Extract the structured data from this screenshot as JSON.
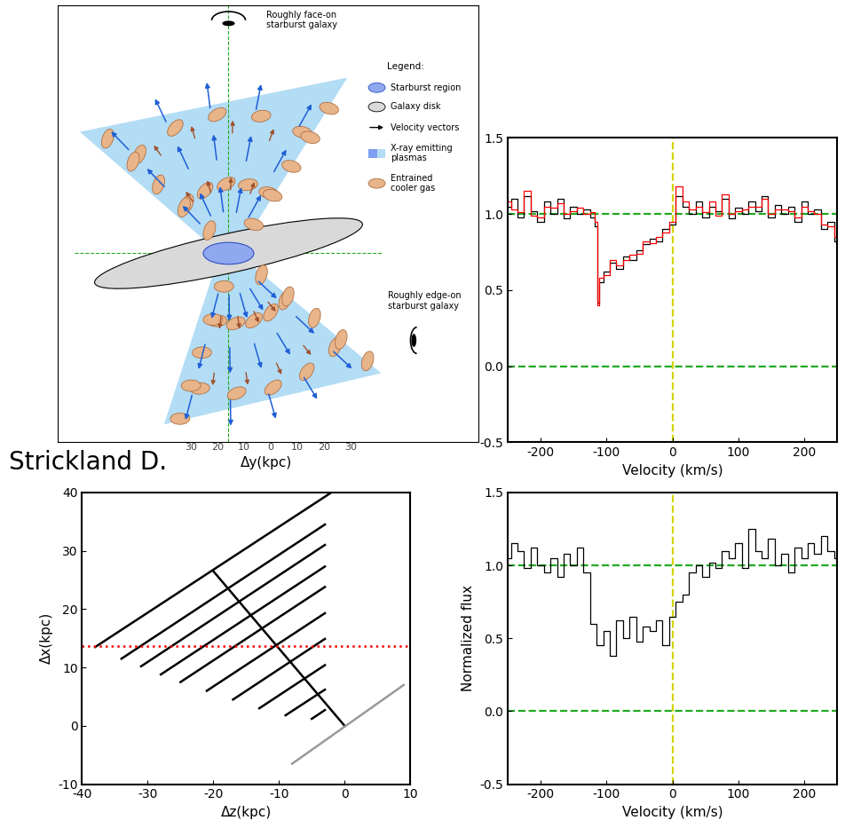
{
  "caption": "Strickland D.",
  "diagram": {
    "face_on_label": "Roughly face-on\nstarburst galaxy",
    "edge_on_label": "Roughly edge-on\nstarburst galaxy",
    "key": {
      "title": "Legend:",
      "entries": [
        "Starburst region",
        "Galaxy disk",
        "Velocity vectors",
        "X-ray emitting\nplasmas",
        "Entrained\ncooler gas"
      ]
    },
    "axis_numbers": [
      "30",
      "20",
      "10",
      "0",
      "10",
      "20",
      "30"
    ],
    "xlabel": "Δy(kpc)"
  },
  "chart_data": [
    {
      "type": "line",
      "xlabel": "Velocity (km/s)",
      "x": [
        -250,
        -240,
        -230,
        -220,
        -210,
        -200,
        -190,
        -180,
        -170,
        -160,
        -150,
        -140,
        -130,
        -120,
        -115,
        -112,
        -110,
        -100,
        -90,
        -80,
        -70,
        -60,
        -50,
        -40,
        -30,
        -20,
        -10,
        0,
        10,
        20,
        30,
        40,
        50,
        60,
        70,
        80,
        90,
        100,
        110,
        120,
        130,
        140,
        150,
        160,
        170,
        180,
        190,
        200,
        210,
        220,
        230,
        240,
        250
      ],
      "series": [
        {
          "color": "#000000",
          "values": [
            1.05,
            1.1,
            0.98,
            1.12,
            1.02,
            0.95,
            1.08,
            1.0,
            1.1,
            0.97,
            1.05,
            1.0,
            1.03,
            0.98,
            0.92,
            0.42,
            0.55,
            0.62,
            0.68,
            0.64,
            0.72,
            0.7,
            0.76,
            0.8,
            0.84,
            0.82,
            0.9,
            0.93,
            1.12,
            1.05,
            1.0,
            1.08,
            0.98,
            1.05,
            1.02,
            1.1,
            0.97,
            1.04,
            1.0,
            1.08,
            1.02,
            1.12,
            0.98,
            1.06,
            1.0,
            1.05,
            0.95,
            1.08,
            1.0,
            1.03,
            0.9,
            0.95,
            0.82
          ]
        },
        {
          "color": "#ff0000",
          "values": [
            1.08,
            1.03,
            1.01,
            1.15,
            0.99,
            0.98,
            1.05,
            1.04,
            1.07,
            1.0,
            1.02,
            1.04,
            1.0,
            1.01,
            0.95,
            0.4,
            0.58,
            0.6,
            0.7,
            0.66,
            0.7,
            0.73,
            0.74,
            0.82,
            0.81,
            0.85,
            0.88,
            0.95,
            1.18,
            1.08,
            1.03,
            1.05,
            1.01,
            1.08,
            0.99,
            1.13,
            1.0,
            1.02,
            1.03,
            1.05,
            1.05,
            1.1,
            1.0,
            1.03,
            1.03,
            1.02,
            0.98,
            1.05,
            1.02,
            1.0,
            0.93,
            0.92,
            0.85
          ]
        }
      ],
      "hlines": [
        {
          "value": 1.0,
          "color": "#22aa22"
        },
        {
          "value": 0.0,
          "color": "#22aa22"
        }
      ],
      "vlines": [
        {
          "value": 0,
          "color": "#d4d400"
        }
      ],
      "xlim": [
        -250,
        250
      ],
      "xticks": [
        -200,
        -100,
        0,
        100,
        200
      ],
      "ylim": [
        -0.5,
        1.5
      ],
      "yticks": [
        -0.5,
        0.0,
        0.5,
        1.0,
        1.5
      ]
    },
    {
      "type": "line",
      "xlabel": "Δz(kpc)",
      "ylabel": "Δx(kpc)",
      "series": [
        {
          "color": "#000000",
          "x": [
            -38,
            -2
          ],
          "values": [
            13.5,
            40.0
          ]
        },
        {
          "color": "#000000",
          "x": [
            -34,
            -3
          ],
          "values": [
            11.5,
            34.5
          ]
        },
        {
          "color": "#000000",
          "x": [
            -31,
            -3
          ],
          "values": [
            10.2,
            31.0
          ]
        },
        {
          "color": "#000000",
          "x": [
            -28,
            -3
          ],
          "values": [
            8.8,
            27.3
          ]
        },
        {
          "color": "#000000",
          "x": [
            -25,
            -3
          ],
          "values": [
            7.5,
            23.8
          ]
        },
        {
          "color": "#000000",
          "x": [
            -21,
            -3
          ],
          "values": [
            6.0,
            19.3
          ]
        },
        {
          "color": "#000000",
          "x": [
            -17,
            -3
          ],
          "values": [
            4.5,
            14.9
          ]
        },
        {
          "color": "#000000",
          "x": [
            -13,
            -3
          ],
          "values": [
            3.0,
            10.4
          ]
        },
        {
          "color": "#000000",
          "x": [
            -9,
            -3
          ],
          "values": [
            1.8,
            6.2
          ]
        },
        {
          "color": "#000000",
          "x": [
            -5,
            -3
          ],
          "values": [
            1.2,
            2.7
          ]
        },
        {
          "color": "#000000",
          "x": [
            0,
            -20
          ],
          "values": [
            0,
            26.5
          ]
        },
        {
          "color": "#999999",
          "x": [
            -8,
            9
          ],
          "values": [
            -6.5,
            7
          ]
        },
        {
          "color": "#ff0000",
          "x": [
            -40,
            10
          ],
          "values": [
            13.7,
            13.7
          ],
          "line_style": "dotted"
        }
      ],
      "xlim": [
        -40,
        10
      ],
      "xticks": [
        -40,
        -30,
        -20,
        -10,
        0,
        10
      ],
      "ylim": [
        -10,
        40
      ],
      "yticks": [
        -10,
        0,
        10,
        20,
        30,
        40
      ]
    },
    {
      "type": "line",
      "xlabel": "Velocity (km/s)",
      "ylabel": "Normalized flux",
      "x": [
        -250,
        -240,
        -230,
        -220,
        -210,
        -200,
        -190,
        -180,
        -170,
        -160,
        -150,
        -140,
        -130,
        -120,
        -110,
        -100,
        -90,
        -80,
        -70,
        -60,
        -50,
        -40,
        -30,
        -20,
        -10,
        0,
        10,
        20,
        30,
        40,
        50,
        60,
        70,
        80,
        90,
        100,
        110,
        120,
        130,
        140,
        150,
        160,
        170,
        180,
        190,
        200,
        210,
        220,
        230,
        240,
        250
      ],
      "series": [
        {
          "color": "#000000",
          "values": [
            1.05,
            1.15,
            1.1,
            0.98,
            1.12,
            1.0,
            0.95,
            1.05,
            0.92,
            1.08,
            1.0,
            1.12,
            0.95,
            0.6,
            0.45,
            0.55,
            0.38,
            0.62,
            0.5,
            0.65,
            0.48,
            0.58,
            0.55,
            0.62,
            0.45,
            0.65,
            0.75,
            0.8,
            0.95,
            1.0,
            0.92,
            1.02,
            0.98,
            1.1,
            1.05,
            1.15,
            0.98,
            1.25,
            1.1,
            1.05,
            1.18,
            1.0,
            1.08,
            0.95,
            1.12,
            1.05,
            1.15,
            1.08,
            1.2,
            1.1,
            1.05
          ]
        }
      ],
      "hlines": [
        {
          "value": 1.0,
          "color": "#22aa22"
        },
        {
          "value": 0.0,
          "color": "#22aa22"
        }
      ],
      "vlines": [
        {
          "value": 0,
          "color": "#d4d400"
        }
      ],
      "xlim": [
        -250,
        250
      ],
      "xticks": [
        -200,
        -100,
        0,
        100,
        200
      ],
      "ylim": [
        -0.5,
        1.5
      ],
      "yticks": [
        -0.5,
        0.0,
        0.5,
        1.0,
        1.5
      ]
    }
  ]
}
